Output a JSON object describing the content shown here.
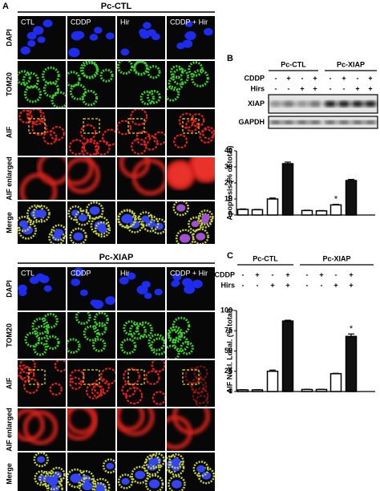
{
  "panel_a": {
    "label": "A",
    "blocks": [
      {
        "title": "Pc-CTL",
        "columns": [
          "CTL",
          "CDDP",
          "Hir",
          "CDDP + Hir"
        ],
        "rows": [
          "DAPI",
          "TOM20",
          "AIF",
          "AIF enlarged",
          "Merge"
        ]
      },
      {
        "title": "Pc-XIAP",
        "columns": [
          "CTL",
          "CDDP",
          "Hir",
          "CDDP + Hir"
        ],
        "rows": [
          "DAPI",
          "TOM20",
          "AIF",
          "AIF enlarged",
          "Merge"
        ]
      }
    ]
  },
  "panel_b": {
    "label": "B",
    "groups": [
      "Pc-CTL",
      "Pc-XIAP"
    ],
    "conditions": [
      {
        "name": "CDDP",
        "signs": [
          "-",
          "+",
          "-",
          "+",
          "-",
          "+",
          "-",
          "+"
        ]
      },
      {
        "name": "Hirs",
        "signs": [
          "-",
          "-",
          "+",
          "+",
          "-",
          "-",
          "+",
          "+"
        ]
      }
    ],
    "bands": [
      "XIAP",
      "GAPDH"
    ]
  },
  "chart_data": [
    {
      "type": "bar",
      "y_label": "Apoptosis (% of total)",
      "values": [
        3.5,
        3.3,
        10,
        32,
        2.8,
        2.6,
        6.3,
        21.5
      ],
      "errors": [
        0.3,
        0.2,
        0.6,
        1,
        0.2,
        0.2,
        0.4,
        0.7
      ],
      "colors": [
        "#ffffff",
        "#ffffff",
        "#ffffff",
        "#111111",
        "#ffffff",
        "#ffffff",
        "#ffffff",
        "#111111"
      ],
      "ylim": [
        0,
        40
      ],
      "yticks": [
        0,
        10,
        20,
        30,
        40
      ],
      "annotation": "*"
    },
    {
      "type": "bar",
      "label": "C",
      "groups": [
        "Pc-CTL",
        "Pc-XIAP"
      ],
      "conditions": [
        {
          "name": "CDDP",
          "signs": [
            "-",
            "+",
            "-",
            "+",
            "-",
            "+",
            "-",
            "+"
          ]
        },
        {
          "name": "Hirs",
          "signs": [
            "-",
            "-",
            "+",
            "+",
            "-",
            "-",
            "+",
            "+"
          ]
        }
      ],
      "y_label": "AIF Nucl. Local. (% total)",
      "values": [
        2,
        2,
        25,
        87,
        2.5,
        2.5,
        22,
        68
      ],
      "errors": [
        0.3,
        0.3,
        1.5,
        1,
        0.3,
        0.3,
        0.5,
        3
      ],
      "colors": [
        "#ffffff",
        "#ffffff",
        "#ffffff",
        "#111111",
        "#ffffff",
        "#ffffff",
        "#ffffff",
        "#111111"
      ],
      "ylim": [
        0,
        100
      ],
      "yticks": [
        0,
        25,
        50,
        75,
        100
      ],
      "annotation": "*"
    }
  ]
}
